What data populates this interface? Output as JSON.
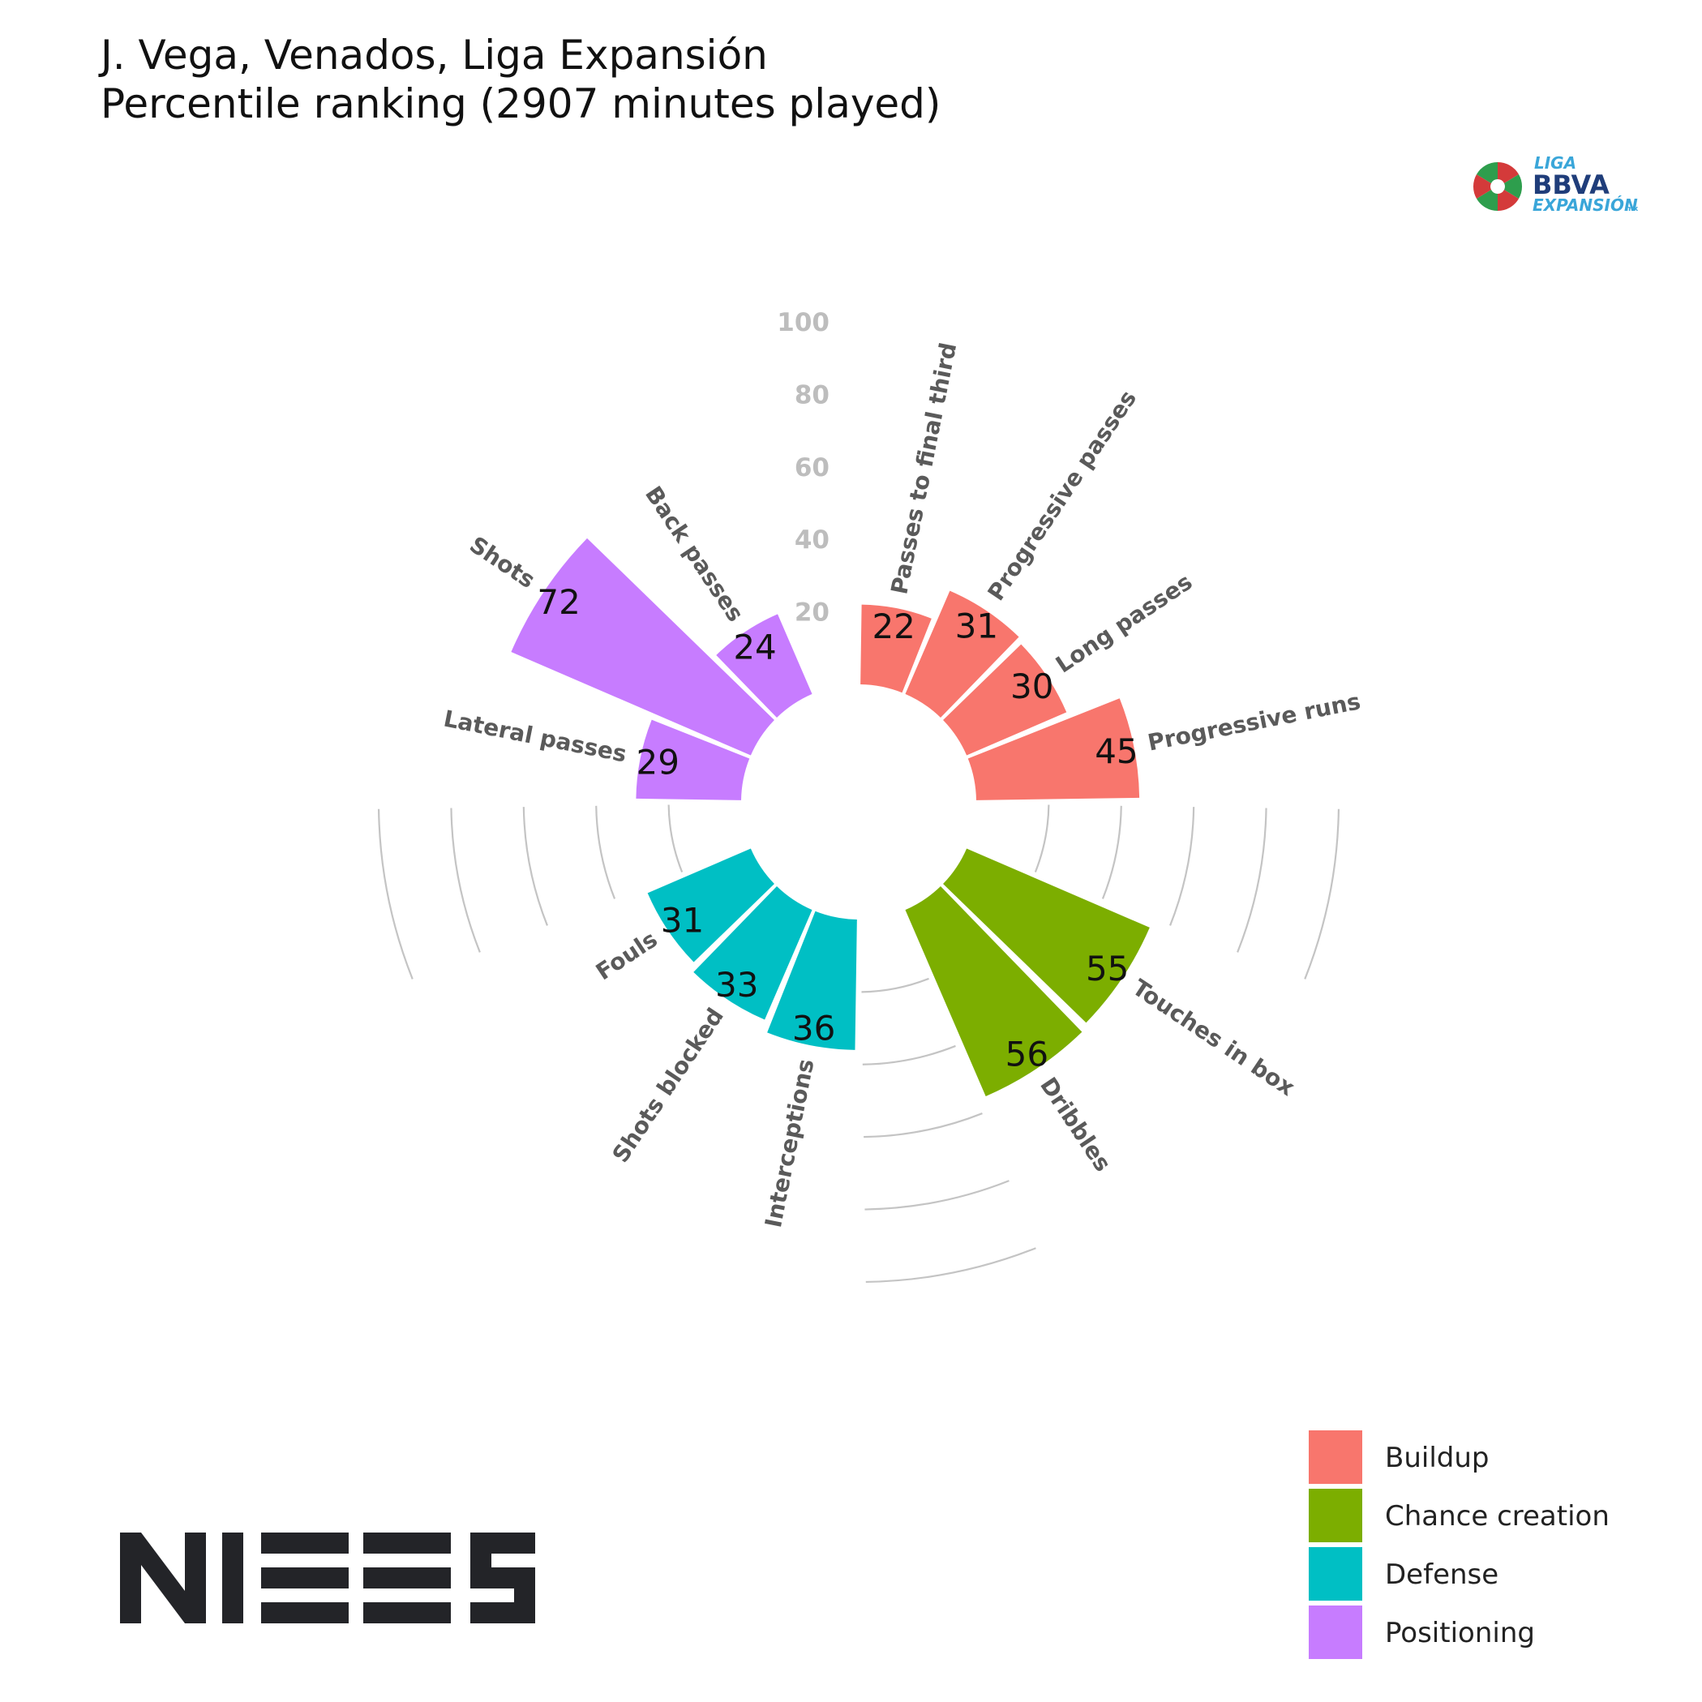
{
  "title": {
    "line1": "J. Vega, Venados, Liga Expansión",
    "line2": "Percentile ranking (2907 minutes played)"
  },
  "league_logo": {
    "line1": "LIGA",
    "line2": "BBVA",
    "line3": "EXPANSIÓN",
    "suffix": "mx"
  },
  "brand_logo": {
    "text": "NIEES"
  },
  "chart_data": {
    "type": "polar-bar",
    "rlim": [
      0,
      100
    ],
    "radial_ticks": [
      "20",
      "40",
      "60",
      "80",
      "100"
    ],
    "grid": true,
    "legend": {
      "position": "bottom-right"
    },
    "groups": [
      {
        "name": "Buildup",
        "color": "#F8766D"
      },
      {
        "name": "Chance creation",
        "color": "#7CAE00"
      },
      {
        "name": "Defense",
        "color": "#00BFC4"
      },
      {
        "name": "Positioning",
        "color": "#C77CFF"
      }
    ],
    "categories": [
      "Passes to final third",
      "Progressive passes",
      "Long passes",
      "Progressive runs",
      "Touches in box",
      "Dribbles",
      "Interceptions",
      "Shots blocked",
      "Fouls",
      "Lateral passes",
      "Shots",
      "Back passes"
    ],
    "values": [
      22,
      31,
      30,
      45,
      55,
      56,
      36,
      33,
      31,
      29,
      72,
      24
    ],
    "group_of": [
      "Buildup",
      "Buildup",
      "Buildup",
      "Buildup",
      "Chance creation",
      "Chance creation",
      "Defense",
      "Defense",
      "Defense",
      "Positioning",
      "Positioning",
      "Positioning"
    ]
  }
}
